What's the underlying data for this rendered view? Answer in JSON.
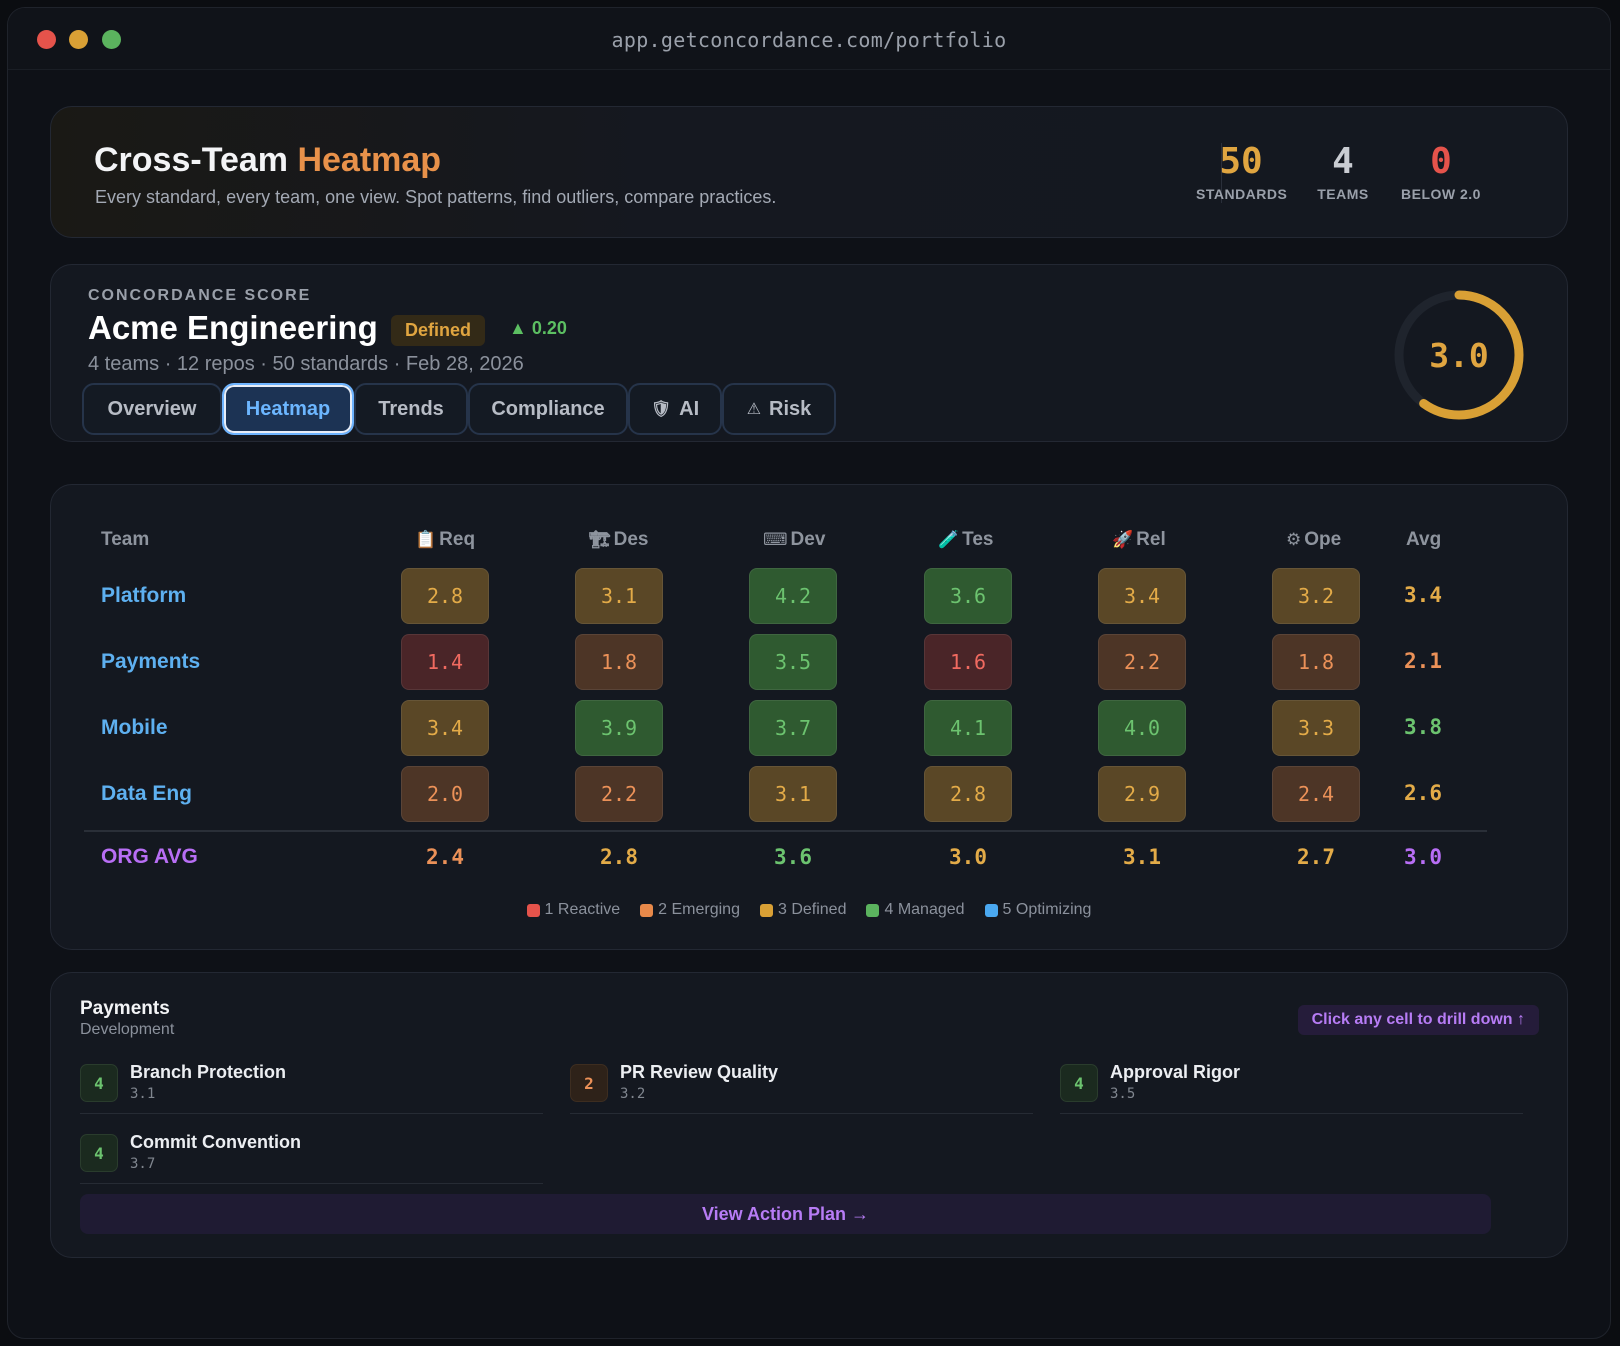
{
  "browser": {
    "url": "app.getconcordance.com/portfolio"
  },
  "header": {
    "title_main": "Cross-Team",
    "title_accent": "Heatmap",
    "subtitle": "Every standard, every team, one view. Spot patterns, find outliers, compare practices.",
    "stats": [
      {
        "value": "50",
        "label": "STANDARDS",
        "color": "#e0a540"
      },
      {
        "value": "4",
        "label": "TEAMS",
        "color": "#c9ccd2"
      },
      {
        "value": "0",
        "label": "BELOW 2.0",
        "color": "#e5534b"
      }
    ]
  },
  "score": {
    "eyebrow": "CONCORDANCE SCORE",
    "org_name": "Acme Engineering",
    "level_badge": "Defined",
    "delta": "▲ 0.20",
    "meta": "4 teams · 12 repos · 50 standards · Feb 28, 2026",
    "overall": "3.0",
    "overall_fraction": 0.6,
    "tabs": [
      {
        "label": "Overview",
        "icon": "",
        "active": false
      },
      {
        "label": "Heatmap",
        "icon": "",
        "active": true
      },
      {
        "label": "Trends",
        "icon": "",
        "active": false
      },
      {
        "label": "Compliance",
        "icon": "",
        "active": false
      },
      {
        "label": "AI",
        "icon": "🛡",
        "active": false
      },
      {
        "label": "Risk",
        "icon": "⚠",
        "active": false
      }
    ]
  },
  "heatmap": {
    "team_header": "Team",
    "avg_header": "Avg",
    "columns": [
      {
        "icon": "📋",
        "label": "Req"
      },
      {
        "icon": "🏗",
        "label": "Des"
      },
      {
        "icon": "⌨",
        "label": "Dev"
      },
      {
        "icon": "🧪",
        "label": "Tes"
      },
      {
        "icon": "🚀",
        "label": "Rel"
      },
      {
        "icon": "⚙",
        "label": "Ope"
      }
    ],
    "rows": [
      {
        "team": "Platform",
        "values": [
          "2.8",
          "3.1",
          "4.2",
          "3.6",
          "3.4",
          "3.2"
        ],
        "avg": "3.4"
      },
      {
        "team": "Payments",
        "values": [
          "1.4",
          "1.8",
          "3.5",
          "1.6",
          "2.2",
          "1.8"
        ],
        "avg": "2.1"
      },
      {
        "team": "Mobile",
        "values": [
          "3.4",
          "3.9",
          "3.7",
          "4.1",
          "4.0",
          "3.3"
        ],
        "avg": "3.8"
      },
      {
        "team": "Data Eng",
        "values": [
          "2.0",
          "2.2",
          "3.1",
          "2.8",
          "2.9",
          "2.4"
        ],
        "avg": "2.6"
      }
    ],
    "org_avg_label": "ORG AVG",
    "org_avg_values": [
      "2.4",
      "2.8",
      "3.6",
      "3.0",
      "3.1",
      "2.7"
    ],
    "org_avg_overall": "3.0",
    "legend": [
      {
        "label": "1 Reactive",
        "color": "#e5534b"
      },
      {
        "label": "2 Emerging",
        "color": "#e8894a"
      },
      {
        "label": "3 Defined",
        "color": "#d9a035"
      },
      {
        "label": "4 Managed",
        "color": "#5bb35e"
      },
      {
        "label": "5 Optimizing",
        "color": "#4aa8f0"
      }
    ]
  },
  "detail": {
    "title": "Payments",
    "subtitle": "Development",
    "hint": "Click any cell to drill down ↑",
    "standards": [
      {
        "level": "4",
        "name": "Branch Protection",
        "score": "3.1"
      },
      {
        "level": "2",
        "name": "PR Review Quality",
        "score": "3.2"
      },
      {
        "level": "4",
        "name": "Approval Rigor",
        "score": "3.5"
      },
      {
        "level": "4",
        "name": "Commit Convention",
        "score": "3.7"
      }
    ],
    "action_label": "View Action Plan →"
  }
}
